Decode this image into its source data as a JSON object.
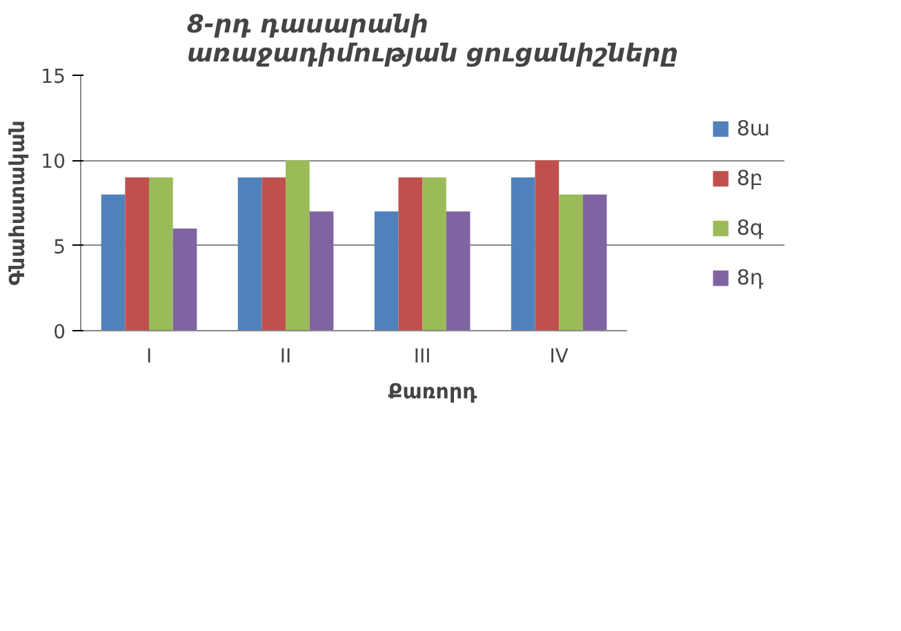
{
  "chart_data": {
    "type": "bar",
    "title": "8-րդ դասարանի\nառաջադիմության ցուցանիշները",
    "xlabel": "Քառորդ",
    "ylabel": "Գնահատական",
    "categories": [
      "I",
      "II",
      "III",
      "IV"
    ],
    "series": [
      {
        "name": "8ա",
        "color": "#4f81bd",
        "values": [
          8,
          9,
          7,
          9
        ]
      },
      {
        "name": "8բ",
        "color": "#c0504d",
        "values": [
          9,
          9,
          9,
          10
        ]
      },
      {
        "name": "8գ",
        "color": "#9bbb59",
        "values": [
          9,
          10,
          9,
          8
        ]
      },
      {
        "name": "8դ",
        "color": "#8064a2",
        "values": [
          6,
          7,
          7,
          8
        ]
      }
    ],
    "ylim": [
      0,
      15
    ],
    "yticks": [
      0,
      5,
      10,
      15
    ],
    "grid": "y",
    "legend": "right"
  }
}
